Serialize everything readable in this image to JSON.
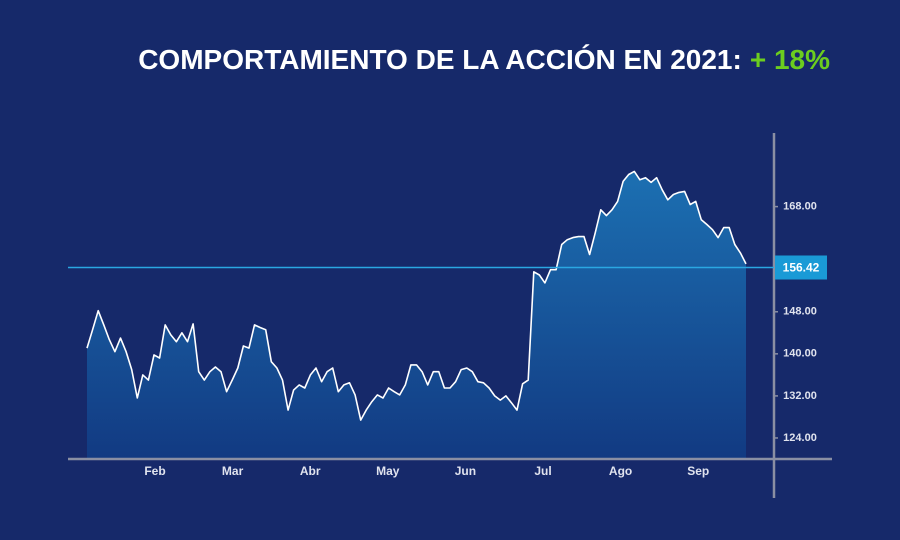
{
  "chart_data": {
    "type": "area",
    "title": "COMPORTAMIENTO DE LA ACCIÓN EN 2021:",
    "title_highlight": "+ 18%",
    "x_labels": [
      "Feb",
      "Mar",
      "Abr",
      "May",
      "Jun",
      "Jul",
      "Ago",
      "Sep"
    ],
    "series": [
      {
        "color": "#ffffff",
        "values": [
          141.1,
          144.6,
          148.2,
          145.5,
          142.7,
          140.4,
          143.0,
          140.4,
          137.0,
          131.6,
          136.0,
          135.0,
          139.8,
          139.2,
          145.5,
          143.6,
          142.3,
          144.0,
          142.3,
          145.7,
          136.6,
          135.0,
          136.6,
          137.5,
          136.6,
          132.8,
          135.0,
          137.3,
          141.5,
          141.1,
          145.5,
          145.0,
          144.6,
          138.5,
          137.3,
          135.0,
          129.3,
          133.1,
          134.1,
          133.5,
          136.0,
          137.3,
          134.7,
          136.6,
          137.3,
          132.8,
          134.1,
          134.5,
          132.2,
          127.4,
          129.3,
          130.9,
          132.2,
          131.6,
          133.5,
          132.8,
          132.2,
          134.1,
          137.9,
          137.9,
          136.6,
          134.1,
          136.6,
          136.6,
          133.5,
          133.5,
          134.7,
          137.0,
          137.3,
          136.6,
          134.7,
          134.5,
          133.5,
          132.0,
          131.2,
          132.0,
          130.7,
          129.3,
          134.3,
          135.0,
          155.6,
          155.0,
          153.5,
          156.0,
          156.0,
          160.8,
          161.7,
          162.1,
          162.3,
          162.3,
          158.9,
          163.0,
          167.4,
          166.3,
          167.4,
          169.0,
          172.8,
          174.1,
          174.7,
          173.1,
          173.5,
          172.6,
          173.5,
          171.2,
          169.3,
          170.3,
          170.7,
          170.9,
          168.4,
          169.0,
          165.5,
          164.6,
          163.6,
          162.1,
          164.0,
          164.0,
          160.8,
          159.2,
          157.1
        ]
      }
    ],
    "reference_line": 156.42,
    "ylim": [
      120,
      182
    ],
    "yticks": [
      {
        "value": 124,
        "label": "124.00"
      },
      {
        "value": 132,
        "label": "132.00"
      },
      {
        "value": 140,
        "label": "140.00"
      },
      {
        "value": 148,
        "label": "148.00"
      },
      {
        "value": 168,
        "label": "168.00"
      }
    ]
  }
}
